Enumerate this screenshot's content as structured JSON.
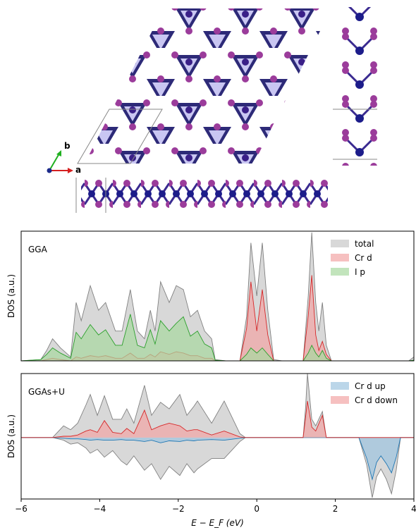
{
  "structure": {
    "axis_labels": [
      "b",
      "a"
    ]
  },
  "chart_data": [
    {
      "type": "area",
      "title": "GGA",
      "ylabel": "DOS (a.u.)",
      "legend": "upper right",
      "xlim": [
        -6,
        4
      ],
      "ylim": [
        0,
        10
      ],
      "x": [
        -6,
        -5.5,
        -5.35,
        -5.2,
        -5.0,
        -4.74,
        -4.6,
        -4.47,
        -4.24,
        -4.03,
        -3.85,
        -3.6,
        -3.43,
        -3.22,
        -3.04,
        -2.86,
        -2.71,
        -2.59,
        -2.45,
        -2.23,
        -2.05,
        -1.87,
        -1.69,
        -1.51,
        -1.33,
        -1.15,
        -1.06,
        -0.79,
        -0.43,
        -0.26,
        -0.15,
        0,
        0.14,
        0.28,
        0.43,
        0.64,
        1.18,
        1.31,
        1.4,
        1.5,
        1.58,
        1.67,
        1.77,
        1.9,
        3.87,
        4
      ],
      "series": [
        {
          "name": "total",
          "color": "#c8c8c8",
          "line_color": "#808080",
          "values": [
            0,
            0.1,
            0.8,
            1.7,
            1.0,
            0.3,
            4.5,
            3.1,
            5.8,
            3.9,
            4.5,
            2.3,
            2.3,
            5.5,
            2.3,
            1.7,
            3.9,
            2.3,
            6.1,
            4.5,
            5.8,
            5.5,
            3.4,
            3.9,
            2.3,
            1.7,
            0.1,
            0,
            0,
            3.4,
            9.1,
            5.0,
            9.1,
            3.9,
            0.1,
            0,
            0,
            5.0,
            9.9,
            4.5,
            2.3,
            4.5,
            1.2,
            0,
            0,
            0.3
          ]
        },
        {
          "name": "Cr d",
          "color": "#f2a5a5",
          "line_color": "#d62728",
          "values": [
            0,
            0,
            0.1,
            0.2,
            0.1,
            0,
            0.3,
            0.2,
            0.4,
            0.3,
            0.4,
            0.2,
            0.2,
            0.6,
            0.2,
            0.2,
            0.5,
            0.3,
            0.7,
            0.5,
            0.7,
            0.6,
            0.4,
            0.4,
            0.2,
            0.2,
            0,
            0,
            0,
            2.5,
            6.1,
            2.3,
            5.5,
            2.0,
            0,
            0,
            0,
            3.5,
            6.6,
            2.0,
            0.8,
            1.5,
            0.5,
            0,
            0,
            0
          ]
        },
        {
          "name": "I p",
          "color": "#a8d8a0",
          "line_color": "#2ca02c",
          "values": [
            0,
            0.1,
            0.5,
            1.0,
            0.6,
            0.2,
            2.2,
            1.7,
            2.8,
            2.0,
            2.4,
            1.2,
            1.2,
            3.6,
            1.2,
            1.0,
            2.4,
            1.3,
            3.1,
            2.3,
            2.9,
            3.4,
            1.9,
            2.3,
            1.3,
            1.0,
            0.05,
            0,
            0,
            0.5,
            1.0,
            0.6,
            1.0,
            0.5,
            0,
            0,
            0,
            0.6,
            1.2,
            0.6,
            0.3,
            0.8,
            0.2,
            0,
            0,
            0.05
          ]
        }
      ]
    },
    {
      "type": "area",
      "title": "GGAs+U",
      "ylabel": "DOS (a.u.)",
      "xlabel": "E − E_F (eV)",
      "legend": "upper right",
      "xlim": [
        -6,
        4
      ],
      "ylim": [
        -4.7,
        4.9
      ],
      "xticks": [
        {
          "value": -6,
          "label": "−6"
        },
        {
          "value": -4,
          "label": "−4"
        },
        {
          "value": -2,
          "label": "−2"
        },
        0,
        2,
        4
      ],
      "x": [
        -6,
        -5.2,
        -4.92,
        -4.74,
        -4.56,
        -4.35,
        -4.24,
        -4.06,
        -3.88,
        -3.67,
        -3.45,
        -3.31,
        -3.13,
        -2.86,
        -2.68,
        -2.45,
        -2.23,
        -1.96,
        -1.78,
        -1.6,
        -1.51,
        -1.15,
        -0.83,
        -0.43,
        -0.29,
        1.18,
        1.24,
        1.29,
        1.4,
        1.5,
        1.67,
        1.77,
        2.6,
        2.8,
        2.94,
        3.05,
        3.16,
        3.3,
        3.43,
        3.55,
        3.66,
        4
      ],
      "series": [
        {
          "color": "#c8c8c8",
          "line_color": "#808080",
          "values": [
            0,
            0,
            0.9,
            0.6,
            1.1,
            2.5,
            3.3,
            1.7,
            3.2,
            1.4,
            1.4,
            2.2,
            1.1,
            4.0,
            1.7,
            2.7,
            2.2,
            3.3,
            1.7,
            2.4,
            2.8,
            1.1,
            2.8,
            0.3,
            0,
            0,
            2.2,
            4.9,
            1.4,
            0.9,
            2.0,
            0,
            0,
            0,
            0,
            0,
            0,
            0,
            0,
            0,
            0,
            0
          ]
        },
        {
          "color": "#c8c8c8",
          "line_color": "#808080",
          "values": [
            0,
            0,
            -0.2,
            -0.5,
            -0.4,
            -0.8,
            -1.2,
            -0.9,
            -1.5,
            -1.0,
            -1.8,
            -2.1,
            -1.4,
            -2.5,
            -2.0,
            -3.2,
            -2.2,
            -2.9,
            -2.0,
            -2.7,
            -2.4,
            -1.6,
            -1.6,
            -0.3,
            0,
            0,
            0,
            0,
            0,
            0,
            0,
            0,
            0,
            -2.1,
            -4.6,
            -3.0,
            -2.4,
            -3.2,
            -4.3,
            -2.5,
            0,
            0
          ]
        },
        {
          "name": "Cr d up",
          "color": "#9ec5e0",
          "line_color": "#1f77b4",
          "values": [
            0,
            0,
            -0.05,
            -0.1,
            -0.1,
            -0.15,
            -0.2,
            -0.15,
            -0.2,
            -0.2,
            -0.15,
            -0.2,
            -0.2,
            -0.3,
            -0.2,
            -0.4,
            -0.25,
            -0.3,
            -0.2,
            -0.25,
            -0.2,
            -0.15,
            -0.2,
            -0.05,
            0,
            0,
            0,
            0,
            0,
            0,
            0,
            0,
            0,
            -1.6,
            -3.2,
            -1.9,
            -1.4,
            -2.0,
            -2.7,
            -1.5,
            0,
            0
          ]
        },
        {
          "name": "Cr d down",
          "color": "#f2a5a5",
          "line_color": "#d62728",
          "values": [
            0,
            0,
            0.1,
            0.1,
            0.2,
            0.5,
            0.6,
            0.4,
            1.3,
            0.4,
            0.3,
            0.7,
            0.3,
            2.1,
            0.6,
            0.9,
            1.1,
            0.9,
            0.5,
            0.6,
            0.6,
            0.2,
            0.5,
            0.05,
            0,
            0,
            1.5,
            2.8,
            0.8,
            0.5,
            1.7,
            0,
            0,
            0,
            0,
            0,
            0,
            0,
            0,
            0,
            0,
            0
          ]
        }
      ]
    }
  ]
}
